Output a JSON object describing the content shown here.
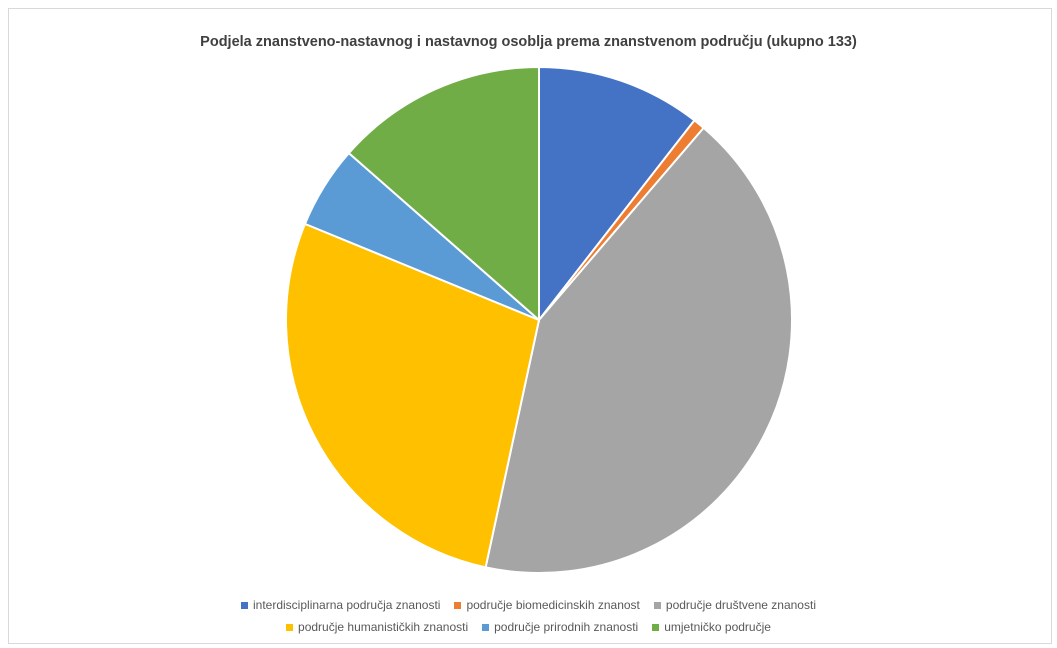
{
  "chart_data": {
    "type": "pie",
    "title": "Podjela znanstveno-nastavnog i nastavnog osoblja prema znanstvenom području (ukupno 133)",
    "legend_position": "bottom",
    "categories": [
      "interdisciplinarna područja znanosti",
      "područje biomedicinskih znanost",
      "područje društvene znanosti",
      "područje humanističkih znanosti",
      "područje prirodnih znanosti",
      "umjetničko područje"
    ],
    "values": [
      14,
      1,
      56,
      37,
      7,
      18
    ],
    "colors": [
      "#4472c4",
      "#ed7d31",
      "#a5a5a5",
      "#ffc000",
      "#5b9bd5",
      "#70ad47"
    ]
  }
}
